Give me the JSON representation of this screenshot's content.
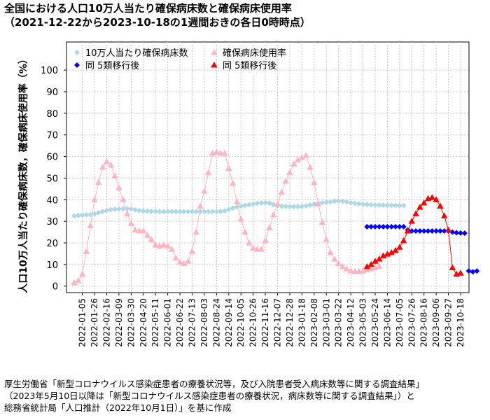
{
  "title": {
    "line1": "全国における人口10万人当たり確保病床数と確保病床使用率",
    "line2": "（2021-12-22から2023-10-18の1週間おきの各日0時時点）"
  },
  "source": {
    "line1": "厚生労働省「新型コロナウイルス感染症患者の療養状況等，及び入院患者受入病床数等に関する調査結果」",
    "line2": "（2023年5月10日以降は「新型コロナウイルス感染症患者の療養状況，病床数等に関する調査結果」）と",
    "line3": "総務省統計局「人口推計（2022年10月1日）」を基に作成"
  },
  "chart_data": {
    "type": "scatter",
    "ylabel": "人口10万人当たり確保病床数，確保病床使用率（%）",
    "ylim": [
      -3,
      113
    ],
    "yticks": [
      0,
      10,
      20,
      30,
      40,
      50,
      60,
      70,
      80,
      90,
      100
    ],
    "grid": true,
    "legend_position": "top-left",
    "x_start": "2021-12-22",
    "x_end": "2023-10-18",
    "xticks": [
      "2022-01-05",
      "2022-01-26",
      "2022-02-16",
      "2022-03-09",
      "2022-03-30",
      "2022-04-20",
      "2022-05-11",
      "2022-06-01",
      "2022-06-22",
      "2022-07-13",
      "2022-08-03",
      "2022-08-24",
      "2022-09-14",
      "2022-10-05",
      "2022-10-26",
      "2022-11-16",
      "2022-12-07",
      "2022-12-28",
      "2023-01-18",
      "2023-02-08",
      "2023-03-01",
      "2023-03-22",
      "2023-04-12",
      "2023-05-03",
      "2023-05-24",
      "2023-06-14",
      "2023-07-05",
      "2023-07-26",
      "2023-08-16",
      "2023-09-06",
      "2023-09-27",
      "2023-10-18"
    ],
    "series": [
      {
        "name": "10万人当たり確保病床数",
        "marker": "diamond",
        "color": "#add8e6",
        "x_start": "2021-12-22",
        "step_days": 7,
        "values": [
          32.5,
          32.7,
          32.9,
          33.0,
          33.1,
          33.4,
          34.0,
          34.5,
          35.0,
          35.4,
          35.6,
          35.7,
          35.8,
          35.9,
          35.7,
          35.3,
          35.0,
          34.8,
          34.7,
          34.6,
          34.6,
          34.5,
          34.5,
          34.5,
          34.5,
          34.5,
          34.5,
          34.5,
          34.5,
          34.5,
          34.5,
          34.5,
          34.5,
          34.5,
          34.5,
          34.5,
          34.6,
          34.8,
          35.5,
          36.1,
          36.6,
          37.0,
          37.4,
          37.7,
          38.0,
          38.3,
          38.5,
          38.6,
          38.4,
          37.8,
          37.2,
          37.0,
          36.9,
          36.8,
          36.8,
          36.8,
          36.9,
          37.1,
          37.5,
          37.9,
          38.3,
          38.6,
          38.9,
          39.1,
          39.3,
          39.4,
          39.3,
          39.0,
          38.6,
          38.3,
          38.1,
          37.9,
          37.8,
          37.7,
          37.6,
          37.5,
          37.5,
          37.4,
          37.4,
          37.4,
          37.3,
          37.3
        ]
      },
      {
        "name": "確保病床使用率",
        "marker": "triangle",
        "color": "#ffb6c1",
        "line": true,
        "x_start": "2021-12-22",
        "step_days": 7,
        "values": [
          1.5,
          2.5,
          5.5,
          16.0,
          28.0,
          40.0,
          48.0,
          55.0,
          57.5,
          56.0,
          51.0,
          45.5,
          40.0,
          33.5,
          29.0,
          26.0,
          25.5,
          25.5,
          23.5,
          21.5,
          19.0,
          18.5,
          19.0,
          18.5,
          17.0,
          13.0,
          11.0,
          10.5,
          11.5,
          16.0,
          25.0,
          37.0,
          44.0,
          52.5,
          61.5,
          62.0,
          61.5,
          61.5,
          54.5,
          47.5,
          39.0,
          31.0,
          25.0,
          20.0,
          17.5,
          17.0,
          17.0,
          21.0,
          27.0,
          33.0,
          38.0,
          43.5,
          48.5,
          52.5,
          56.5,
          58.5,
          59.5,
          60.5,
          55.0,
          48.0,
          38.0,
          29.5,
          21.5,
          15.5,
          12.5,
          10.5,
          9.0,
          8.0,
          7.0,
          6.8,
          6.9,
          7.0,
          7.5,
          8.0,
          8.5,
          9.0
        ]
      },
      {
        "name": "同 5類移行後",
        "marker": "diamond",
        "color": "#0000ff",
        "x_start": "2023-05-10",
        "step_days": 7,
        "values": [
          27.5,
          27.5,
          27.5,
          27.5,
          27.5,
          27.5,
          27.5,
          27.5,
          27.5,
          27.5,
          26.0,
          25.5,
          25.5,
          25.5,
          25.5,
          25.5,
          25.5,
          25.5,
          25.5,
          25.5,
          25.5,
          25.0,
          24.7,
          24.6,
          24.5,
          7.0,
          6.6,
          7.0
        ]
      },
      {
        "name": "同 5類移行後",
        "marker": "triangle",
        "color": "#ff0000",
        "line": true,
        "x_start": "2023-05-10",
        "step_days": 7,
        "values": [
          9.0,
          10.0,
          11.5,
          12.5,
          14.0,
          14.8,
          15.5,
          16.5,
          18.0,
          21.0,
          25.5,
          30.0,
          33.5,
          36.5,
          38.5,
          40.5,
          41.0,
          40.0,
          37.0,
          32.5,
          26.0,
          8.5,
          5.5,
          6.0
        ]
      }
    ]
  }
}
